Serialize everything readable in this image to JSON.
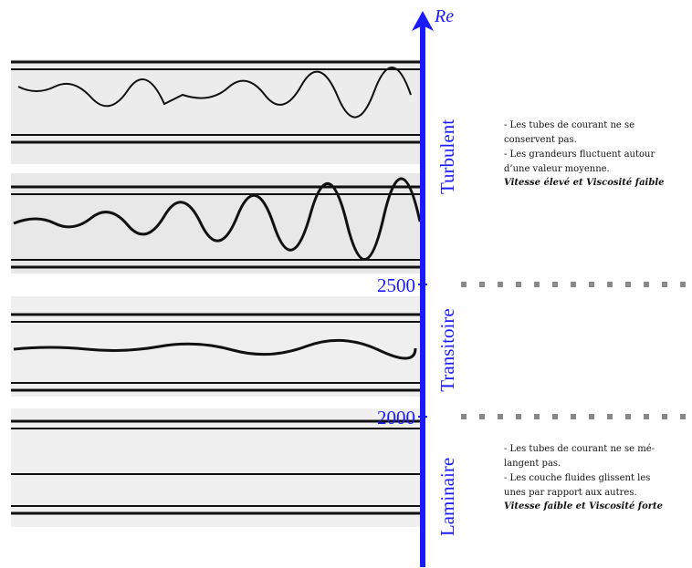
{
  "axis": {
    "label": "Re",
    "ticks": [
      "2500",
      "2000"
    ]
  },
  "regimes": [
    {
      "name": "Turbulent",
      "description": [
        "- Les tubes de courant ne se",
        "conservent pas.",
        "- Les grandeurs fluctuent autour",
        "d’une valeur moyenne."
      ],
      "summary": "Vitesse élevé et Viscosité faible"
    },
    {
      "name": "Transitoire"
    },
    {
      "name": "Laminaire",
      "description": [
        "- Les tubes de courant ne se mé-",
        "langent pas.",
        "- Les couche fluides glissent les",
        "unes par rapport aux autres."
      ],
      "summary": "Vitesse faible et Viscosité forte"
    }
  ]
}
